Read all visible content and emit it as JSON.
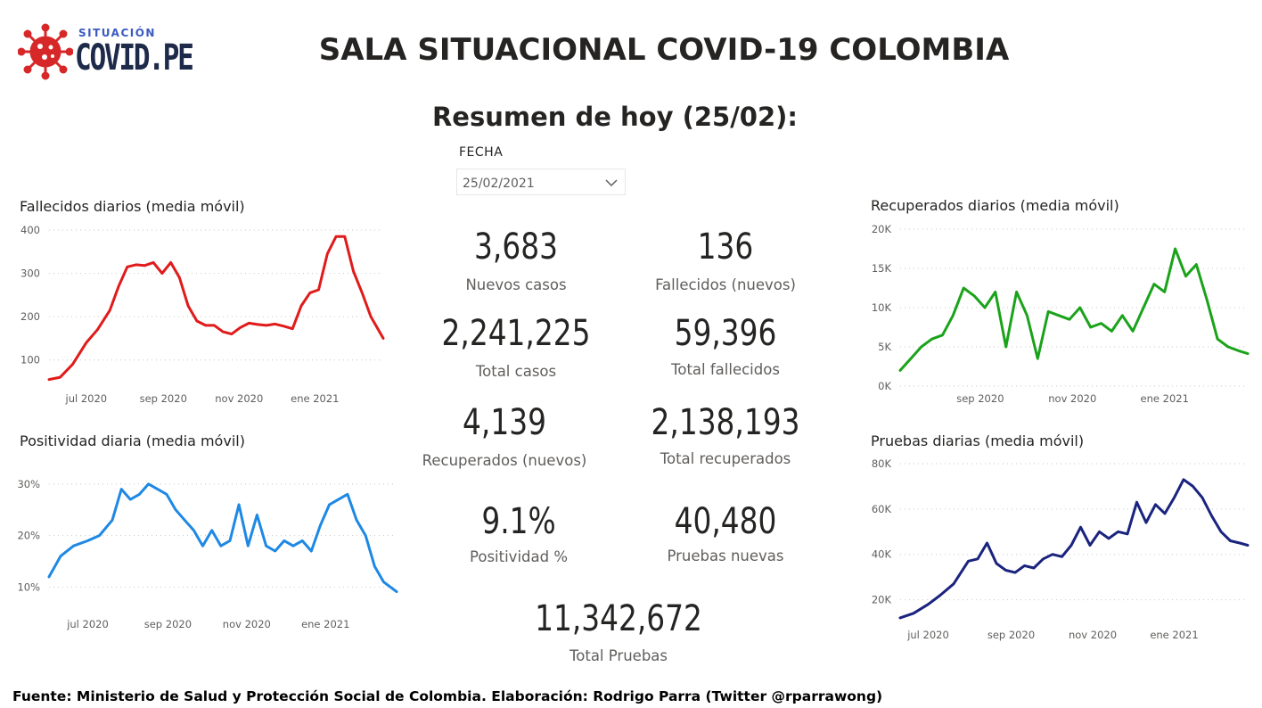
{
  "header": {
    "logo_small": "SITUACIÓN",
    "logo_big": "COVID.PE",
    "title": "SALA SITUACIONAL COVID-19 COLOMBIA",
    "summary_title": "Resumen de hoy (25/02):"
  },
  "filter": {
    "label": "FECHA",
    "value": "25/02/2021",
    "icon": "chevron-down-icon"
  },
  "kpis": {
    "nuevos_casos": {
      "value": "3,683",
      "label": "Nuevos casos"
    },
    "fallecidos_nuevos": {
      "value": "136",
      "label": "Fallecidos (nuevos)"
    },
    "total_casos": {
      "value": "2,241,225",
      "label": "Total casos"
    },
    "total_fallecidos": {
      "value": "59,396",
      "label": "Total fallecidos"
    },
    "recuperados_nuevos": {
      "value": "4,139",
      "label": "Recuperados (nuevos)"
    },
    "total_recuperados": {
      "value": "2,138,193",
      "label": "Total recuperados"
    },
    "positividad": {
      "value": "9.1%",
      "label": "Positividad %"
    },
    "pruebas_nuevas": {
      "value": "40,480",
      "label": "Pruebas nuevas"
    },
    "total_pruebas": {
      "value": "11,342,672",
      "label": "Total Pruebas"
    }
  },
  "footer": "Fuente: Ministerio de Salud y Protección Social de Colombia. Elaboración: Rodrigo Parra (Twitter @rparrawong)",
  "chart_data": [
    {
      "id": "fallecidos",
      "type": "line",
      "title": "Fallecidos diarios (media móvil)",
      "color": "#e01b1b",
      "ylim": [
        50,
        400
      ],
      "yticks": [
        100,
        200,
        300,
        400
      ],
      "ytick_labels": [
        "100",
        "200",
        "300",
        "400"
      ],
      "xlim": [
        "2020-06-01",
        "2021-02-25"
      ],
      "xticks": [
        "2020-07-01",
        "2020-09-01",
        "2020-11-01",
        "2021-01-01"
      ],
      "xtick_labels": [
        "jul 2020",
        "sep 2020",
        "nov 2020",
        "ene 2021"
      ],
      "grid": true,
      "x": [
        "2020-06-01",
        "2020-06-10",
        "2020-06-20",
        "2020-07-01",
        "2020-07-10",
        "2020-07-20",
        "2020-07-27",
        "2020-08-03",
        "2020-08-10",
        "2020-08-17",
        "2020-08-24",
        "2020-08-31",
        "2020-09-07",
        "2020-09-14",
        "2020-09-21",
        "2020-09-28",
        "2020-10-05",
        "2020-10-12",
        "2020-10-19",
        "2020-10-26",
        "2020-11-02",
        "2020-11-09",
        "2020-11-16",
        "2020-11-23",
        "2020-11-30",
        "2020-12-07",
        "2020-12-14",
        "2020-12-21",
        "2020-12-28",
        "2021-01-04",
        "2021-01-11",
        "2021-01-18",
        "2021-01-25",
        "2021-02-01",
        "2021-02-08",
        "2021-02-15",
        "2021-02-25"
      ],
      "y": [
        55,
        60,
        90,
        140,
        170,
        215,
        270,
        315,
        320,
        318,
        325,
        300,
        325,
        290,
        225,
        190,
        180,
        180,
        165,
        160,
        175,
        185,
        182,
        180,
        183,
        178,
        172,
        225,
        255,
        262,
        345,
        385,
        385,
        305,
        255,
        200,
        150
      ]
    },
    {
      "id": "positividad",
      "type": "line",
      "title": "Positividad diaria (media móvil)",
      "color": "#1e88e5",
      "ylim": [
        8,
        31
      ],
      "yticks": [
        10,
        20,
        30
      ],
      "ytick_labels": [
        "10%",
        "20%",
        "30%"
      ],
      "xlim": [
        "2020-06-01",
        "2021-02-25"
      ],
      "xticks": [
        "2020-07-01",
        "2020-09-01",
        "2020-11-01",
        "2021-01-01"
      ],
      "xtick_labels": [
        "jul 2020",
        "sep 2020",
        "nov 2020",
        "ene 2021"
      ],
      "grid": true,
      "x": [
        "2020-06-01",
        "2020-06-10",
        "2020-06-20",
        "2020-07-01",
        "2020-07-10",
        "2020-07-20",
        "2020-07-27",
        "2020-08-03",
        "2020-08-10",
        "2020-08-17",
        "2020-08-24",
        "2020-08-31",
        "2020-09-07",
        "2020-09-14",
        "2020-09-21",
        "2020-09-28",
        "2020-10-05",
        "2020-10-12",
        "2020-10-19",
        "2020-10-26",
        "2020-11-02",
        "2020-11-09",
        "2020-11-16",
        "2020-11-23",
        "2020-11-30",
        "2020-12-07",
        "2020-12-14",
        "2020-12-21",
        "2020-12-28",
        "2021-01-04",
        "2021-01-11",
        "2021-01-18",
        "2021-01-25",
        "2021-02-01",
        "2021-02-08",
        "2021-02-15",
        "2021-02-25"
      ],
      "y": [
        12,
        16,
        18,
        19,
        20,
        23,
        29,
        27,
        28,
        30,
        29,
        28,
        25,
        23,
        21,
        18,
        21,
        18,
        19,
        26,
        18,
        24,
        18,
        17,
        19,
        18,
        19,
        17,
        22,
        26,
        27,
        28,
        23,
        20,
        14,
        11,
        9.1
      ]
    },
    {
      "id": "recuperados",
      "type": "line",
      "title": "Recuperados diarios (media móvil)",
      "color": "#1aa31a",
      "ylim": [
        0,
        20000
      ],
      "yticks": [
        0,
        5000,
        10000,
        15000,
        20000
      ],
      "ytick_labels": [
        "0K",
        "5K",
        "10K",
        "15K",
        "20K"
      ],
      "xlim": [
        "2020-07-10",
        "2021-02-25"
      ],
      "xticks": [
        "2020-09-01",
        "2020-11-01",
        "2021-01-01"
      ],
      "xtick_labels": [
        "sep 2020",
        "nov 2020",
        "ene 2021"
      ],
      "grid": true,
      "x": [
        "2020-07-10",
        "2020-07-17",
        "2020-07-24",
        "2020-07-31",
        "2020-08-07",
        "2020-08-14",
        "2020-08-21",
        "2020-08-28",
        "2020-09-04",
        "2020-09-11",
        "2020-09-18",
        "2020-09-25",
        "2020-10-02",
        "2020-10-09",
        "2020-10-16",
        "2020-10-23",
        "2020-10-30",
        "2020-11-06",
        "2020-11-13",
        "2020-11-20",
        "2020-11-27",
        "2020-12-04",
        "2020-12-11",
        "2020-12-18",
        "2020-12-25",
        "2021-01-01",
        "2021-01-08",
        "2021-01-15",
        "2021-01-22",
        "2021-01-29",
        "2021-02-05",
        "2021-02-12",
        "2021-02-19",
        "2021-02-25"
      ],
      "y": [
        2000,
        3500,
        5000,
        6000,
        6500,
        9000,
        12500,
        11500,
        10000,
        12000,
        5000,
        12000,
        9000,
        3500,
        9500,
        9000,
        8500,
        10000,
        7500,
        8000,
        7000,
        9000,
        7000,
        10000,
        13000,
        12000,
        17500,
        14000,
        15500,
        11000,
        6000,
        5000,
        4500,
        4139
      ]
    },
    {
      "id": "pruebas",
      "type": "line",
      "title": "Pruebas diarias (media móvil)",
      "color": "#1a237e",
      "ylim": [
        10000,
        80000
      ],
      "yticks": [
        20000,
        40000,
        60000,
        80000
      ],
      "ytick_labels": [
        "20K",
        "40K",
        "60K",
        "80K"
      ],
      "xlim": [
        "2020-06-10",
        "2021-02-25"
      ],
      "xticks": [
        "2020-07-01",
        "2020-09-01",
        "2020-11-01",
        "2021-01-01"
      ],
      "xtick_labels": [
        "jul 2020",
        "sep 2020",
        "nov 2020",
        "ene 2021"
      ],
      "grid": true,
      "x": [
        "2020-06-10",
        "2020-06-20",
        "2020-07-01",
        "2020-07-10",
        "2020-07-20",
        "2020-07-31",
        "2020-08-07",
        "2020-08-14",
        "2020-08-21",
        "2020-08-28",
        "2020-09-04",
        "2020-09-11",
        "2020-09-18",
        "2020-09-25",
        "2020-10-02",
        "2020-10-09",
        "2020-10-16",
        "2020-10-23",
        "2020-10-30",
        "2020-11-06",
        "2020-11-13",
        "2020-11-20",
        "2020-11-27",
        "2020-12-04",
        "2020-12-11",
        "2020-12-18",
        "2020-12-25",
        "2021-01-01",
        "2021-01-08",
        "2021-01-15",
        "2021-01-22",
        "2021-01-29",
        "2021-02-05",
        "2021-02-12",
        "2021-02-19",
        "2021-02-25"
      ],
      "y": [
        12000,
        14000,
        18000,
        22000,
        27000,
        37000,
        38000,
        45000,
        36000,
        33000,
        32000,
        35000,
        34000,
        38000,
        40000,
        39000,
        44000,
        52000,
        44000,
        50000,
        47000,
        50000,
        49000,
        63000,
        54000,
        62000,
        58000,
        65000,
        73000,
        70000,
        65000,
        57000,
        50000,
        46000,
        45000,
        44000
      ]
    }
  ]
}
